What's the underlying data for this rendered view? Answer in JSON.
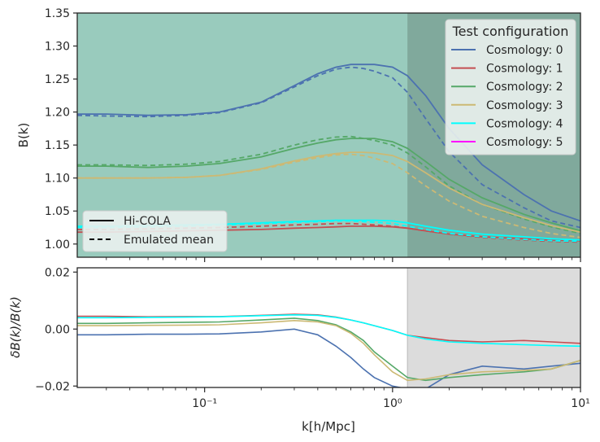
{
  "chart_data": [
    {
      "type": "line",
      "panel": "top",
      "ylabel": "B(k)",
      "xscale": "log",
      "xlim": [
        0.021,
        10
      ],
      "ylim": [
        0.98,
        1.35
      ],
      "yticks": [
        1.0,
        1.05,
        1.1,
        1.15,
        1.2,
        1.25,
        1.3,
        1.35
      ],
      "ytick_labels": [
        "1.00",
        "1.05",
        "1.10",
        "1.15",
        "1.20",
        "1.25",
        "1.30",
        "1.35"
      ],
      "shaded_region_k_start": 1.2,
      "legend_test": {
        "title": "Test configuration",
        "placement": "top-right",
        "entries": [
          "Cosmology: 0",
          "Cosmology: 1",
          "Cosmology: 2",
          "Cosmology: 3",
          "Cosmology: 4",
          "Cosmology: 5"
        ]
      },
      "legend_style": {
        "placement": "bottom-left",
        "entries": [
          "Hi-COLA",
          "Emulated mean"
        ]
      },
      "k": [
        0.021,
        0.03,
        0.05,
        0.08,
        0.12,
        0.2,
        0.3,
        0.4,
        0.5,
        0.6,
        0.7,
        0.8,
        1.0,
        1.2,
        1.5,
        2.0,
        3.0,
        5.0,
        7.0,
        10.0
      ],
      "series": [
        {
          "name": "Cosmology: 0",
          "color": "#4c72b0",
          "hicola": [
            1.197,
            1.197,
            1.195,
            1.196,
            1.2,
            1.215,
            1.24,
            1.258,
            1.268,
            1.272,
            1.272,
            1.272,
            1.268,
            1.255,
            1.225,
            1.175,
            1.12,
            1.075,
            1.05,
            1.035
          ],
          "emulated": [
            1.195,
            1.194,
            1.193,
            1.195,
            1.199,
            1.214,
            1.238,
            1.255,
            1.265,
            1.268,
            1.266,
            1.262,
            1.252,
            1.23,
            1.19,
            1.14,
            1.09,
            1.055,
            1.035,
            1.025
          ]
        },
        {
          "name": "Cosmology: 1",
          "color": "#c44e52",
          "hicola": [
            1.018,
            1.018,
            1.019,
            1.02,
            1.021,
            1.022,
            1.024,
            1.025,
            1.026,
            1.027,
            1.027,
            1.027,
            1.026,
            1.024,
            1.02,
            1.015,
            1.011,
            1.008,
            1.006,
            1.005
          ],
          "emulated": [
            1.022,
            1.022,
            1.023,
            1.024,
            1.025,
            1.027,
            1.029,
            1.03,
            1.031,
            1.031,
            1.03,
            1.029,
            1.027,
            1.024,
            1.02,
            1.015,
            1.01,
            1.006,
            1.004,
            1.003
          ]
        },
        {
          "name": "Cosmology: 2",
          "color": "#55a868",
          "hicola": [
            1.118,
            1.118,
            1.116,
            1.118,
            1.122,
            1.132,
            1.145,
            1.153,
            1.158,
            1.16,
            1.16,
            1.16,
            1.155,
            1.145,
            1.125,
            1.098,
            1.07,
            1.045,
            1.032,
            1.02
          ],
          "emulated": [
            1.12,
            1.12,
            1.119,
            1.121,
            1.125,
            1.136,
            1.15,
            1.158,
            1.162,
            1.163,
            1.16,
            1.157,
            1.15,
            1.138,
            1.117,
            1.088,
            1.06,
            1.038,
            1.026,
            1.016
          ]
        },
        {
          "name": "Cosmology: 3",
          "color": "#ccb974",
          "hicola": [
            1.1,
            1.1,
            1.1,
            1.101,
            1.104,
            1.114,
            1.126,
            1.133,
            1.137,
            1.139,
            1.139,
            1.138,
            1.134,
            1.125,
            1.108,
            1.085,
            1.06,
            1.04,
            1.028,
            1.018
          ],
          "emulated": [
            1.1,
            1.1,
            1.1,
            1.101,
            1.104,
            1.113,
            1.124,
            1.131,
            1.135,
            1.136,
            1.134,
            1.13,
            1.122,
            1.108,
            1.088,
            1.065,
            1.042,
            1.025,
            1.016,
            1.01
          ]
        },
        {
          "name": "Cosmology: 4",
          "color": "#00ffff",
          "hicola": [
            1.027,
            1.027,
            1.028,
            1.029,
            1.03,
            1.032,
            1.034,
            1.035,
            1.036,
            1.036,
            1.036,
            1.036,
            1.035,
            1.032,
            1.027,
            1.021,
            1.015,
            1.011,
            1.008,
            1.006
          ],
          "emulated": [
            1.025,
            1.025,
            1.026,
            1.027,
            1.029,
            1.031,
            1.033,
            1.034,
            1.035,
            1.035,
            1.034,
            1.033,
            1.031,
            1.027,
            1.022,
            1.016,
            1.011,
            1.007,
            1.005,
            1.004
          ]
        },
        {
          "name": "Cosmology: 5",
          "color": "#ff00ff",
          "hicola": [],
          "emulated": []
        }
      ]
    },
    {
      "type": "line",
      "panel": "bottom",
      "xlabel": "k[h/Mpc]",
      "ylabel": "δB(k)/B(k)",
      "xscale": "log",
      "xlim": [
        0.021,
        10
      ],
      "ylim": [
        -0.0205,
        0.0215
      ],
      "yticks": [
        -0.02,
        0.0,
        0.02
      ],
      "ytick_labels": [
        "−0.02",
        "0.00",
        "0.02"
      ],
      "xtick_labels": [
        "10⁻¹",
        "10⁰",
        "10¹"
      ],
      "shaded_region_k_start": 1.2,
      "k": [
        0.021,
        0.03,
        0.05,
        0.08,
        0.12,
        0.2,
        0.3,
        0.4,
        0.5,
        0.6,
        0.7,
        0.8,
        1.0,
        1.2,
        1.5,
        2.0,
        3.0,
        5.0,
        7.0,
        10.0
      ],
      "series": [
        {
          "name": "Cosmology: 0",
          "color": "#4c72b0",
          "values": [
            -0.002,
            -0.002,
            -0.0018,
            -0.0018,
            -0.0017,
            -0.001,
            0.0,
            -0.002,
            -0.006,
            -0.01,
            -0.014,
            -0.017,
            -0.02,
            -0.021,
            -0.021,
            -0.016,
            -0.013,
            -0.014,
            -0.013,
            -0.012
          ]
        },
        {
          "name": "Cosmology: 1",
          "color": "#c44e52",
          "values": [
            0.0045,
            0.0045,
            0.0043,
            0.0044,
            0.0044,
            0.0048,
            0.0052,
            0.005,
            0.0042,
            0.0032,
            0.0022,
            0.0012,
            -0.0005,
            -0.0022,
            -0.003,
            -0.004,
            -0.0045,
            -0.004,
            -0.0045,
            -0.005
          ]
        },
        {
          "name": "Cosmology: 2",
          "color": "#55a868",
          "values": [
            0.002,
            0.002,
            0.0022,
            0.0024,
            0.0025,
            0.0032,
            0.0038,
            0.003,
            0.0015,
            -0.001,
            -0.004,
            -0.008,
            -0.013,
            -0.017,
            -0.018,
            -0.017,
            -0.016,
            -0.015,
            -0.014,
            -0.011
          ]
        },
        {
          "name": "Cosmology: 3",
          "color": "#ccb974",
          "values": [
            0.0012,
            0.0012,
            0.0013,
            0.0014,
            0.0015,
            0.0022,
            0.003,
            0.0025,
            0.0012,
            -0.0015,
            -0.005,
            -0.009,
            -0.015,
            -0.018,
            -0.0175,
            -0.016,
            -0.015,
            -0.0145,
            -0.014,
            -0.011
          ]
        },
        {
          "name": "Cosmology: 4",
          "color": "#00ffff",
          "values": [
            0.004,
            0.004,
            0.0041,
            0.0042,
            0.0043,
            0.0047,
            0.005,
            0.0048,
            0.0041,
            0.0032,
            0.0022,
            0.0012,
            -0.0005,
            -0.0022,
            -0.0035,
            -0.0045,
            -0.005,
            -0.0055,
            -0.0058,
            -0.006
          ]
        }
      ]
    }
  ]
}
